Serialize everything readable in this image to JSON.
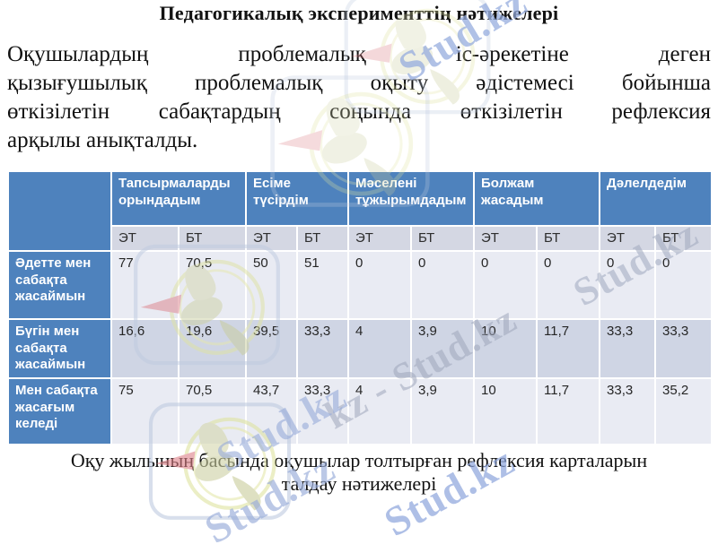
{
  "title": "Педагогикалық эксперименттің нәтижелері",
  "paragraph_lines": [
    "Оқушылардың проблемалық іс-әрекетіне деген",
    "қызығушылық проблемалық оқыту әдістемесі бойынша",
    "өткізілетін сабақтардың соңында өткізілетін рефлексия",
    "арқылы анықталды."
  ],
  "table": {
    "groups": [
      {
        "label": "Тапсырмаларды орындадым"
      },
      {
        "label": "Есіме түсірдім"
      },
      {
        "label": "Мәселені тұжырымдадым"
      },
      {
        "label": "Болжам жасадым"
      },
      {
        "label": "Дәлелдедім"
      }
    ],
    "subheaders": [
      "ЭТ",
      "БТ",
      "ЭТ",
      "БТ",
      "ЭТ",
      "БТ",
      "ЭТ",
      "БТ",
      "ЭТ",
      "БТ"
    ],
    "rows": [
      {
        "label": "Әдетте мен сабақта жасаймын",
        "values": [
          "77",
          "70,5",
          "50",
          "51",
          "0",
          "0",
          "0",
          "0",
          "0",
          "0"
        ]
      },
      {
        "label": "Бүгін мен сабақта жасаймын",
        "values": [
          "16,6",
          "19,6",
          "39,5",
          "33,3",
          "4",
          "3,9",
          "10",
          "11,7",
          "33,3",
          "33,3"
        ]
      },
      {
        "label": "Мен сабақта жасағым келеді",
        "values": [
          "75",
          "70,5",
          "43,7",
          "33,3",
          "4",
          "3,9",
          "10",
          "11,7",
          "33,3",
          "35,2"
        ]
      }
    ],
    "colors": {
      "header_bg": "#4e82bd",
      "subheader_bg": "#d4d7e3",
      "row_light": "#e9ebf3",
      "row_dark": "#cfd5e4"
    }
  },
  "caption_lines": [
    "Оқу жылының басында оқушылар толтырған рефлексия карталарын",
    "талдау нәтижелері"
  ],
  "watermark": {
    "text": "Stud.kz",
    "chain_text": "kz - Stud.kz"
  }
}
